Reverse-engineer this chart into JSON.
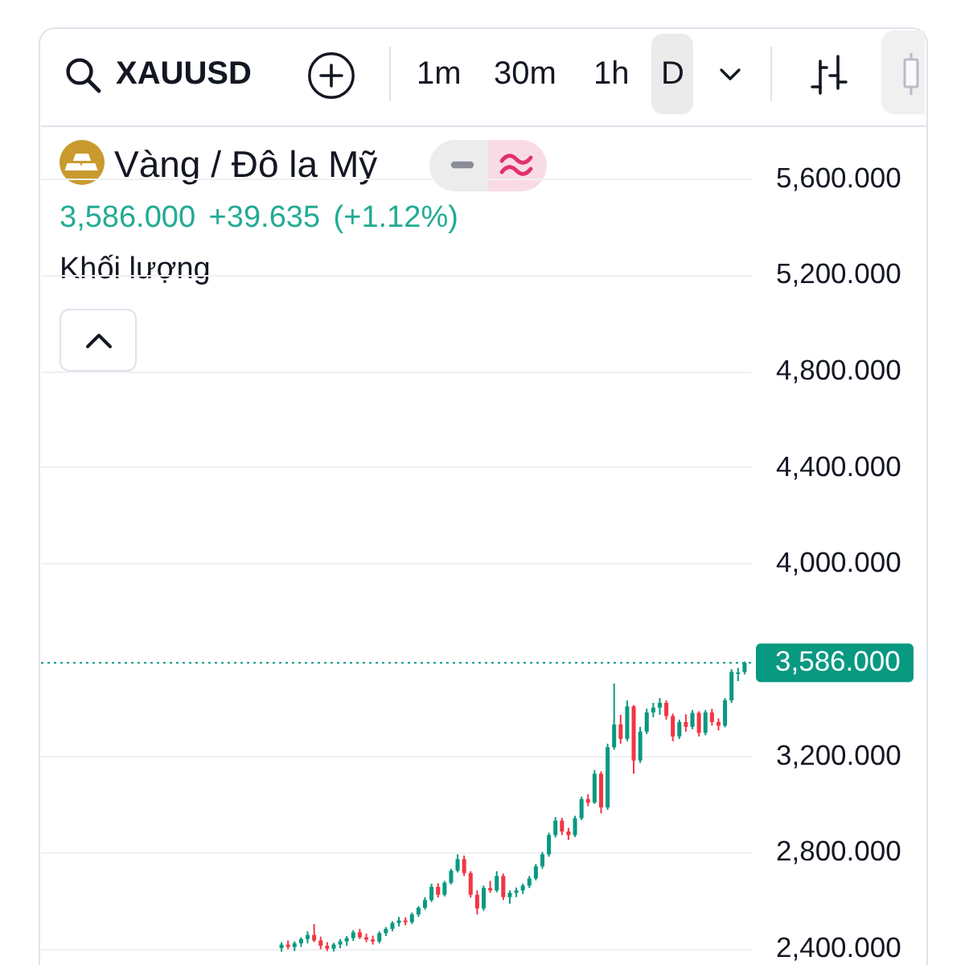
{
  "chart_data": {
    "type": "candlestick",
    "title": "Vàng / Đô la Mỹ",
    "subtitle": "3,586.000 +39.635 (+1.12%)",
    "annotations": [
      "XAUUSD",
      "1m",
      "30m",
      "1h",
      "D",
      "Khối lượng"
    ],
    "categories": [
      null,
      null,
      null,
      null,
      null,
      null,
      null,
      null,
      null,
      null,
      null,
      null,
      null,
      null,
      null,
      null,
      null,
      null,
      null,
      null,
      null,
      null,
      null,
      null,
      null,
      null,
      null,
      null,
      null,
      null,
      null,
      null,
      null,
      null,
      null,
      null,
      null,
      null,
      null,
      null,
      null,
      null,
      null,
      null,
      null,
      null,
      null,
      null,
      null,
      null,
      null,
      null,
      null,
      null,
      null,
      null,
      null,
      null,
      null,
      null,
      null,
      null,
      null,
      null,
      null,
      null,
      null,
      null,
      null,
      null,
      null,
      null,
      null,
      null,
      null,
      null,
      null,
      null,
      null,
      null,
      null,
      null,
      null,
      null,
      null,
      null,
      null,
      null,
      null,
      null,
      null,
      null,
      null,
      null,
      null,
      null,
      null,
      null,
      null,
      null,
      null,
      null,
      null,
      null,
      null,
      null,
      null,
      null
    ],
    "ohlc": [
      null,
      null,
      null,
      null,
      null,
      null,
      null,
      null,
      null,
      null,
      null,
      null,
      null,
      null,
      null,
      null,
      null,
      null,
      null,
      null,
      null,
      null,
      null,
      null,
      null,
      null,
      null,
      null,
      null,
      null,
      null,
      null,
      null,
      null,
      null,
      null,
      [
        2400,
        2425,
        2385,
        2415
      ],
      [
        2415,
        2432,
        2395,
        2405
      ],
      [
        2405,
        2428,
        2388,
        2420
      ],
      [
        2420,
        2445,
        2405,
        2438
      ],
      [
        2438,
        2470,
        2420,
        2455
      ],
      [
        2455,
        2500,
        2425,
        2432
      ],
      [
        2432,
        2448,
        2395,
        2410
      ],
      [
        2410,
        2425,
        2388,
        2398
      ],
      [
        2398,
        2422,
        2386,
        2415
      ],
      [
        2415,
        2438,
        2400,
        2428
      ],
      [
        2428,
        2450,
        2410,
        2442
      ],
      [
        2442,
        2475,
        2430,
        2466
      ],
      [
        2466,
        2480,
        2438,
        2445
      ],
      [
        2445,
        2460,
        2425,
        2436
      ],
      [
        2436,
        2452,
        2415,
        2428
      ],
      [
        2428,
        2470,
        2420,
        2462
      ],
      [
        2462,
        2488,
        2450,
        2480
      ],
      [
        2480,
        2512,
        2470,
        2505
      ],
      [
        2505,
        2530,
        2490,
        2515
      ],
      [
        2515,
        2528,
        2495,
        2508
      ],
      [
        2508,
        2548,
        2500,
        2540
      ],
      [
        2540,
        2575,
        2530,
        2568
      ],
      [
        2568,
        2612,
        2560,
        2600
      ],
      [
        2600,
        2668,
        2592,
        2655
      ],
      [
        2655,
        2670,
        2610,
        2622
      ],
      [
        2622,
        2680,
        2615,
        2672
      ],
      [
        2672,
        2730,
        2665,
        2722
      ],
      [
        2722,
        2790,
        2715,
        2770
      ],
      [
        2770,
        2785,
        2700,
        2712
      ],
      [
        2712,
        2720,
        2610,
        2622
      ],
      [
        2622,
        2640,
        2540,
        2565
      ],
      [
        2565,
        2660,
        2555,
        2650
      ],
      [
        2650,
        2680,
        2630,
        2640
      ],
      [
        2640,
        2720,
        2632,
        2700
      ],
      [
        2700,
        2710,
        2600,
        2612
      ],
      [
        2612,
        2640,
        2585,
        2630
      ],
      [
        2630,
        2652,
        2612,
        2640
      ],
      [
        2640,
        2668,
        2625,
        2660
      ],
      [
        2660,
        2700,
        2650,
        2690
      ],
      [
        2690,
        2750,
        2682,
        2740
      ],
      [
        2740,
        2800,
        2730,
        2790
      ],
      [
        2790,
        2880,
        2780,
        2870
      ],
      [
        2870,
        2945,
        2860,
        2930
      ],
      [
        2930,
        2942,
        2870,
        2885
      ],
      [
        2885,
        2900,
        2850,
        2870
      ],
      [
        2870,
        2950,
        2862,
        2940
      ],
      [
        2940,
        3030,
        2932,
        3020
      ],
      [
        3020,
        3040,
        2990,
        3005
      ],
      [
        3005,
        3140,
        3000,
        3125
      ],
      [
        3125,
        3135,
        2960,
        2985
      ],
      [
        2985,
        3250,
        2975,
        3235
      ],
      [
        3235,
        3500,
        3225,
        3330
      ],
      [
        3330,
        3370,
        3250,
        3270
      ],
      [
        3270,
        3430,
        3260,
        3405
      ],
      [
        3405,
        3410,
        3125,
        3180
      ],
      [
        3180,
        3320,
        3170,
        3300
      ],
      [
        3300,
        3395,
        3290,
        3380
      ],
      [
        3380,
        3420,
        3360,
        3400
      ],
      [
        3400,
        3440,
        3370,
        3420
      ],
      [
        3420,
        3430,
        3350,
        3365
      ],
      [
        3365,
        3375,
        3260,
        3280
      ],
      [
        3280,
        3350,
        3270,
        3340
      ],
      [
        3340,
        3372,
        3300,
        3320
      ],
      [
        3320,
        3390,
        3310,
        3378
      ],
      [
        3378,
        3385,
        3280,
        3295
      ],
      [
        3295,
        3390,
        3285,
        3380
      ],
      [
        3380,
        3395,
        3325,
        3340
      ],
      [
        3340,
        3355,
        3305,
        3325
      ],
      [
        3325,
        3440,
        3318,
        3430
      ],
      [
        3430,
        3560,
        3420,
        3548
      ],
      [
        3540,
        3565,
        3510,
        3546
      ],
      [
        3548,
        3592,
        3538,
        3586
      ]
    ],
    "colors": [
      null,
      null,
      null,
      null,
      null,
      null,
      null,
      null,
      null,
      null,
      null,
      null,
      null,
      null,
      null,
      null,
      null,
      null,
      null,
      null,
      null,
      null,
      null,
      null,
      null,
      null,
      null,
      null,
      null,
      null,
      null,
      null,
      null,
      null,
      null,
      null,
      "#089981",
      "#f23645",
      "#089981",
      "#089981",
      "#089981",
      "#f23645",
      "#f23645",
      "#f23645",
      "#089981",
      "#089981",
      "#089981",
      "#089981",
      "#f23645",
      "#f23645",
      "#f23645",
      "#089981",
      "#089981",
      "#089981",
      "#089981",
      "#f23645",
      "#089981",
      "#089981",
      "#089981",
      "#089981",
      "#f23645",
      "#089981",
      "#089981",
      "#089981",
      "#f23645",
      "#f23645",
      "#f23645",
      "#089981",
      "#f23645",
      "#089981",
      "#f23645",
      "#089981",
      "#089981",
      "#089981",
      "#089981",
      "#089981",
      "#089981",
      "#089981",
      "#089981",
      "#f23645",
      "#f23645",
      "#089981",
      "#089981",
      "#f23645",
      "#089981",
      "#f23645",
      "#089981",
      "#089981",
      "#f23645",
      "#089981",
      "#f23645",
      "#089981",
      "#089981",
      "#089981",
      "#089981",
      "#f23645",
      "#f23645",
      "#089981",
      "#f23645",
      "#089981",
      "#f23645",
      "#089981",
      "#f23645",
      "#f23645",
      "#089981",
      "#089981",
      "#089981",
      "#089981"
    ],
    "ylim": [
      2330,
      5820
    ],
    "yticks": [
      {
        "value": 2400,
        "label": "2,400.000"
      },
      {
        "value": 2800,
        "label": "2,800.000"
      },
      {
        "value": 3200,
        "label": "3,200.000"
      },
      {
        "value": 4000,
        "label": "4,000.000"
      },
      {
        "value": 4400,
        "label": "4,400.000"
      },
      {
        "value": 4800,
        "label": "4,800.000"
      },
      {
        "value": 5200,
        "label": "5,200.000"
      },
      {
        "value": 5600,
        "label": "5,600.000"
      }
    ],
    "grid": "y",
    "tick_labels": "y",
    "ref_lines": [
      {
        "axis": "y",
        "value": 3586,
        "label": "3,586.000",
        "color": "#089981",
        "line_style": "dotted"
      }
    ]
  }
}
